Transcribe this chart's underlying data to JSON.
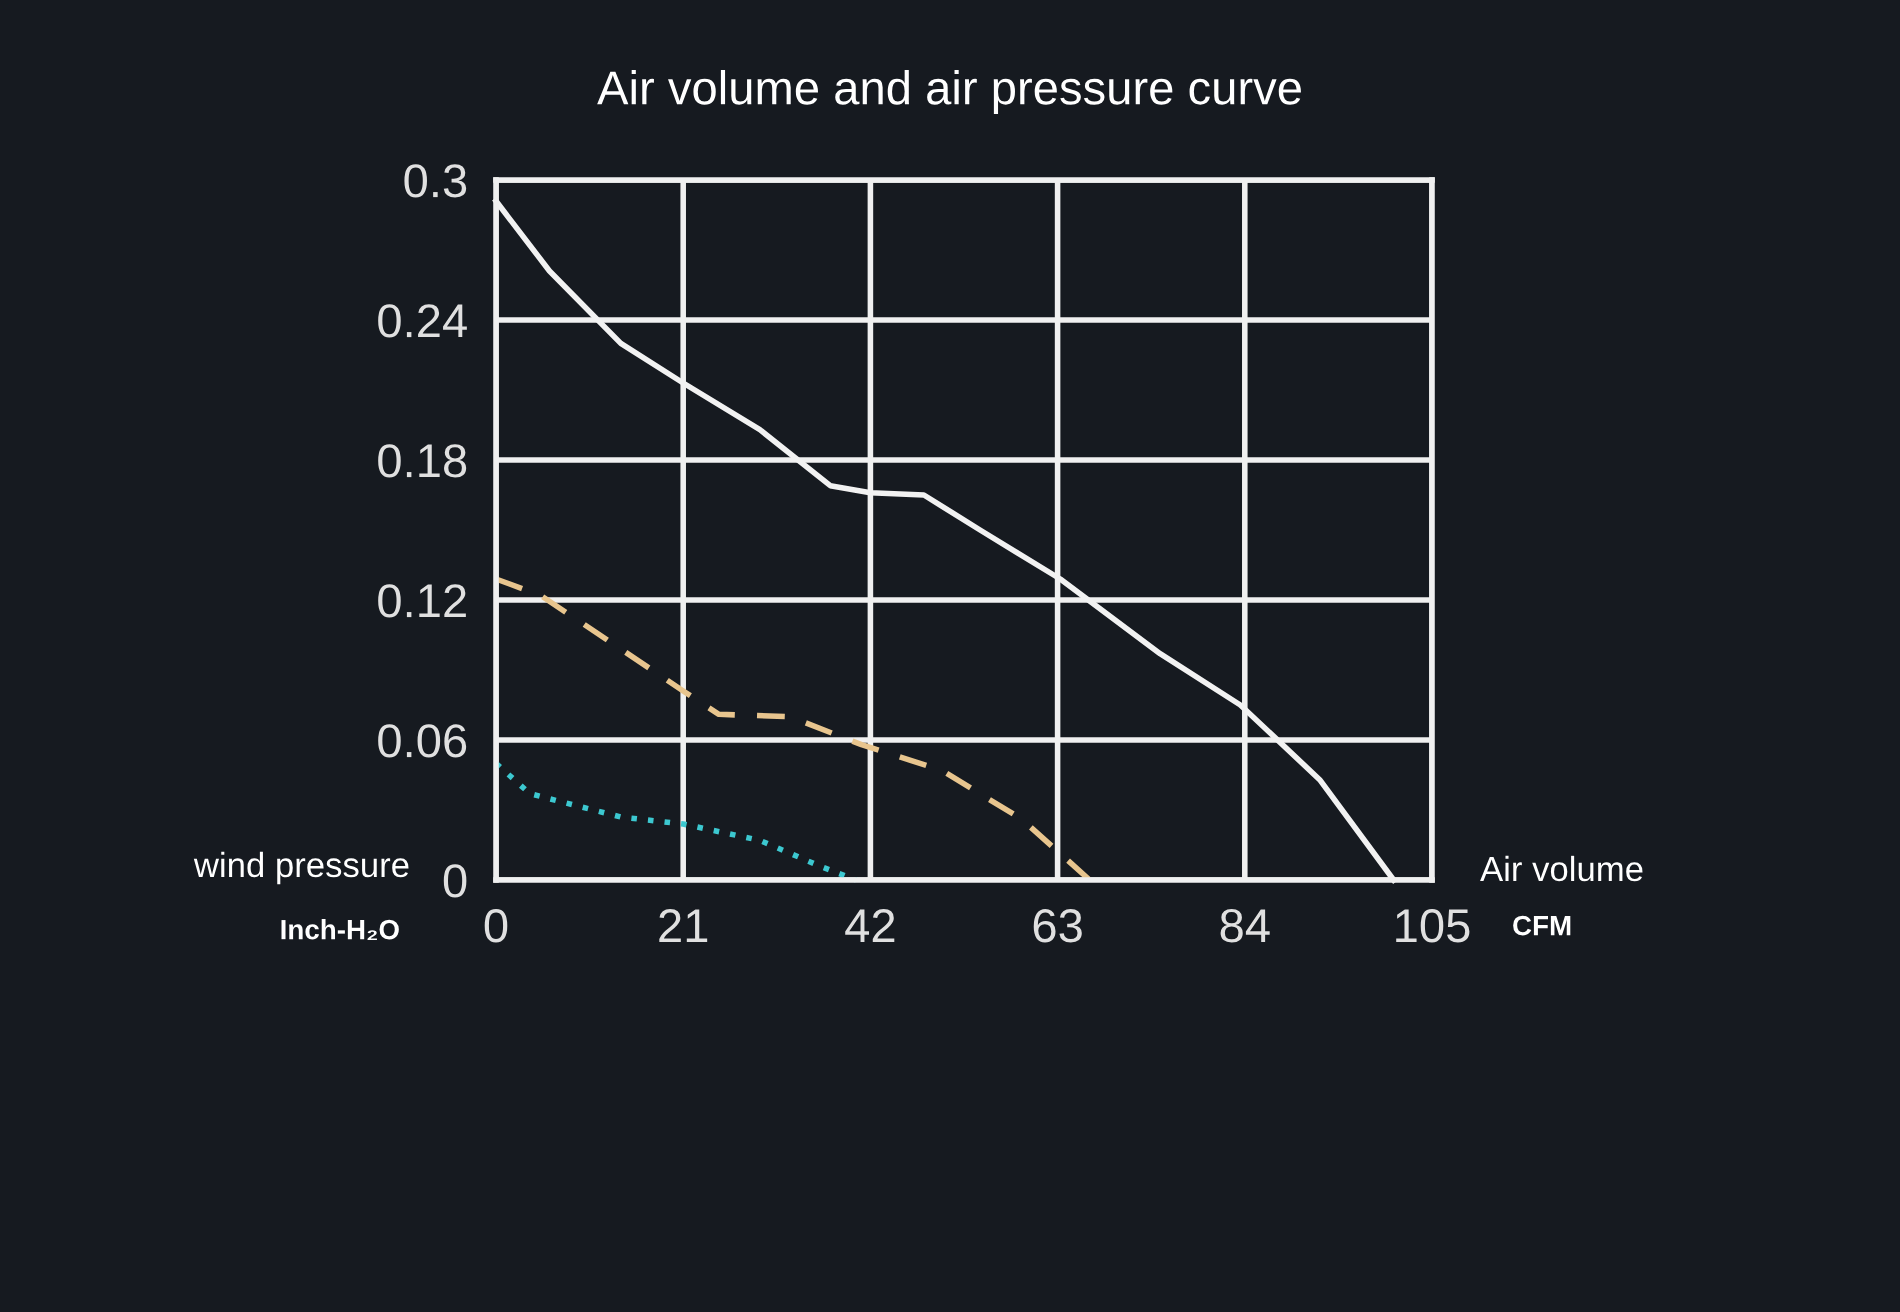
{
  "chart_data": {
    "type": "line",
    "title": "Air volume and air pressure curve",
    "xlabel": "Air volume",
    "ylabel": "wind pressure",
    "annotations": [
      "CFM",
      "Inch-H₂O"
    ],
    "xlim": [
      0,
      105
    ],
    "xticks": [
      0,
      21,
      42,
      63,
      84,
      105
    ],
    "ylim": [
      0,
      0.3
    ],
    "yticks": [
      0,
      0.06,
      0.12,
      0.18,
      0.24,
      0.3
    ],
    "grid": true,
    "marker": "none",
    "series": [
      {
        "color": "#f2f2f2",
        "line_style": "solid",
        "x": [
          0,
          6,
          14,
          21,
          29.6,
          37.5,
          42,
          48,
          54.3,
          63.3,
          74.5,
          83.5,
          92.4,
          100.7
        ],
        "values": [
          0.291,
          0.261,
          0.23,
          0.213,
          0.193,
          0.169,
          0.166,
          0.165,
          0.15,
          0.129,
          0.097,
          0.075,
          0.043,
          0
        ]
      },
      {
        "color": "#e8c58e",
        "line_style": "dashed",
        "x": [
          0,
          5,
          14,
          21,
          25,
          33,
          41,
          50,
          59,
          66.6
        ],
        "values": [
          0.129,
          0.122,
          0.099,
          0.081,
          0.071,
          0.07,
          0.058,
          0.047,
          0.026,
          0
        ]
      },
      {
        "color": "#3cc8d0",
        "line_style": "dotted",
        "x": [
          0,
          3.8,
          14,
          21,
          29.6,
          36.3,
          40.4
        ],
        "values": [
          0.05,
          0.037,
          0.027,
          0.024,
          0.017,
          0.006,
          0
        ]
      }
    ]
  }
}
